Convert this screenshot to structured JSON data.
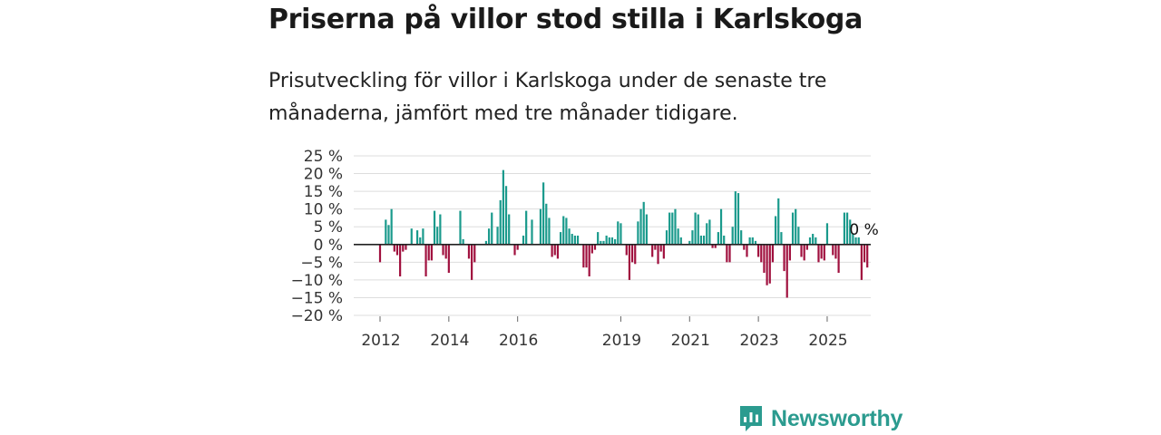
{
  "header": {
    "title": "Priserna på villor stod stilla i Karlskoga",
    "subtitle": "Prisutveckling för villor i Karlskoga under de senaste tre månaderna, jämfört med tre månader tidigare."
  },
  "brand": {
    "name": "Newsworthy",
    "icon": "newsworthy-logo-icon",
    "color": "#2b9b8f"
  },
  "colors": {
    "positive": "#1a9a8c",
    "negative": "#a0103e",
    "grid": "#dddddd",
    "zero": "#222222"
  },
  "chart_data": {
    "type": "bar",
    "title": "Priserna på villor stod stilla i Karlskoga",
    "xlabel": "",
    "ylabel": "",
    "ylim": [
      -20,
      25
    ],
    "y_ticks": [
      25,
      20,
      15,
      10,
      5,
      0,
      -5,
      -10,
      -15,
      -20
    ],
    "y_tick_labels": [
      "25 %",
      "20 %",
      "15 %",
      "10 %",
      "5 %",
      "0 %",
      "−5 %",
      "−10 %",
      "−15 %",
      "−20 %"
    ],
    "x_tick_labels": [
      "2012",
      "2014",
      "2016",
      "2019",
      "2021",
      "2023",
      "2025"
    ],
    "x_tick_index": [
      0,
      24,
      48,
      84,
      108,
      132,
      156
    ],
    "grid": true,
    "annotation": {
      "label": "0 %",
      "index": 165,
      "value": 0
    },
    "start": "2012-01",
    "values": [
      -5,
      0,
      7,
      5.5,
      10,
      -2,
      -3,
      -9,
      -2,
      -1.5,
      0,
      4.5,
      0,
      4,
      2,
      4.5,
      -9,
      -4.5,
      -4.5,
      9.5,
      5,
      8.5,
      -3,
      -4,
      -8,
      0,
      0,
      0,
      9.5,
      1.5,
      0,
      -4,
      -10,
      -5,
      0,
      0,
      0,
      1,
      4.5,
      9,
      0,
      5,
      12.5,
      21,
      16.5,
      8.5,
      0,
      -3,
      -1.5,
      0,
      2.5,
      9.5,
      0,
      7,
      0,
      0,
      10,
      17.5,
      11.5,
      7.5,
      -3.5,
      -3,
      -4,
      3.5,
      8,
      7.5,
      4.5,
      3,
      2.5,
      2.5,
      0,
      -6.5,
      -6.5,
      -9,
      -2.5,
      -1.5,
      3.5,
      1,
      1,
      2.5,
      2,
      2,
      1.5,
      6.5,
      6,
      0,
      -3,
      -10,
      -5,
      -5.5,
      6.5,
      10,
      12,
      8.5,
      0,
      -3.5,
      -1.5,
      -5.5,
      -2,
      -4,
      4,
      9,
      9,
      10,
      4.5,
      2,
      0,
      0,
      1,
      4,
      9,
      8.5,
      2.5,
      2.5,
      6,
      7,
      -1,
      -1,
      3.5,
      10,
      2.5,
      -5,
      -5,
      5,
      15,
      14.5,
      4,
      -1.5,
      -3.5,
      2,
      2,
      1,
      -3.5,
      -5,
      -8,
      -11.5,
      -11,
      -5,
      8,
      13,
      3.5,
      -7.5,
      -15,
      -4.5,
      9,
      10,
      5,
      -3.5,
      -4.5,
      -1.5,
      2,
      3,
      2,
      -5,
      -4,
      -4.5,
      6,
      0,
      -3,
      -4,
      -8,
      0,
      9,
      9,
      7,
      3,
      2,
      2,
      -10,
      -5,
      -6.5,
      0
    ]
  }
}
